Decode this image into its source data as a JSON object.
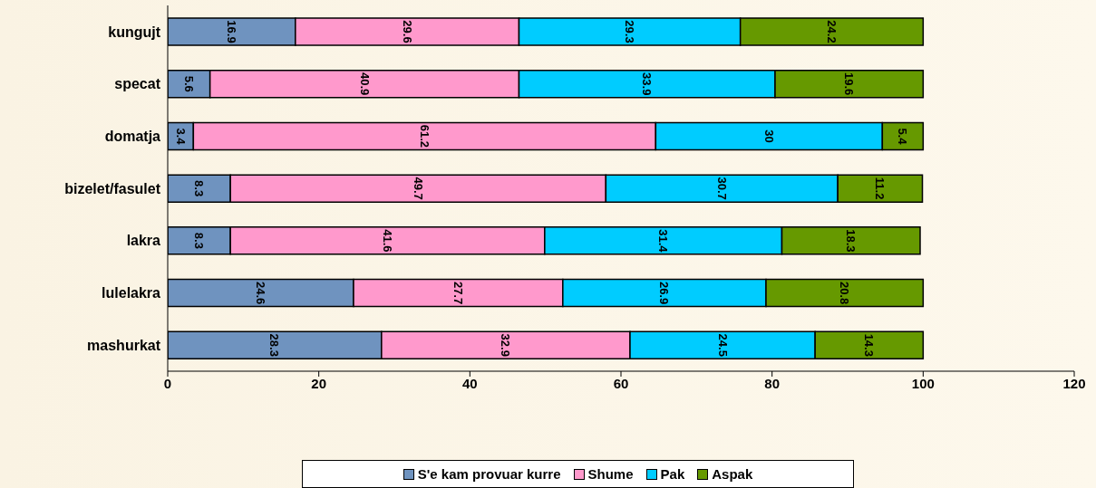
{
  "chart_data": {
    "type": "bar",
    "orientation": "horizontal",
    "stacked": true,
    "categories": [
      "kungujt",
      "specat",
      "domatja",
      "bizelet/fasulet",
      "lakra",
      "lulelakra",
      "mashurkat"
    ],
    "series": [
      {
        "name": "S'e kam provuar kurre",
        "color": "#6f93bf",
        "values": [
          16.9,
          5.6,
          3.4,
          8.3,
          8.3,
          24.6,
          28.3
        ]
      },
      {
        "name": "Shume",
        "color": "#ff99cc",
        "values": [
          29.6,
          40.9,
          61.2,
          49.7,
          41.6,
          27.7,
          32.9
        ]
      },
      {
        "name": "Pak",
        "color": "#00ccff",
        "values": [
          29.3,
          33.9,
          30,
          30.7,
          31.4,
          26.9,
          24.5
        ]
      },
      {
        "name": "Aspak",
        "color": "#669900",
        "values": [
          24.2,
          19.6,
          5.4,
          11.2,
          18.3,
          20.8,
          14.3
        ]
      }
    ],
    "xlim": [
      0,
      120
    ],
    "xticks": [
      0,
      20,
      40,
      60,
      80,
      100,
      120
    ],
    "data_labels": true,
    "legend": "bottom"
  }
}
